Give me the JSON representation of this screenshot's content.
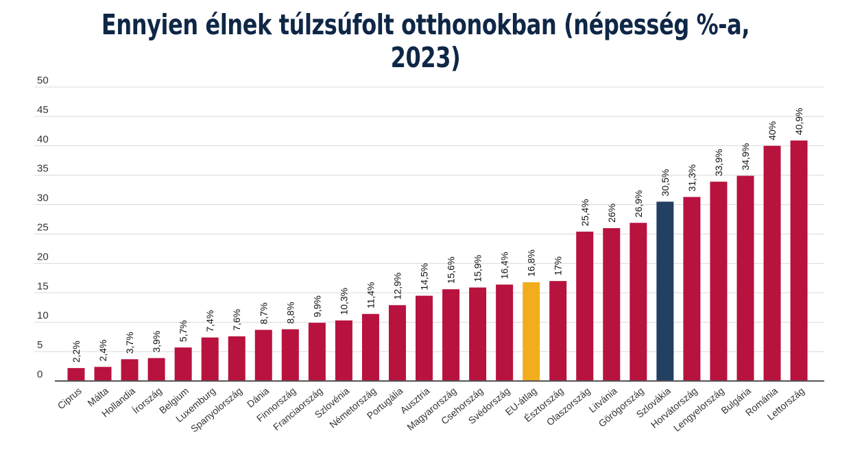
{
  "chart_data": {
    "type": "bar",
    "title": "Ennyien élnek túlzsúfolt otthonokban (népesség %-a, 2023)",
    "xlabel": "",
    "ylabel": "",
    "ylim": [
      0,
      50
    ],
    "yticks": [
      0,
      5,
      10,
      15,
      20,
      25,
      30,
      35,
      40,
      45,
      50
    ],
    "ytick_labels": [
      "0",
      "5",
      "10",
      "15",
      "20",
      "25",
      "30",
      "35",
      "40",
      "45",
      "50"
    ],
    "grid": true,
    "categories": [
      "Ciprus",
      "Málta",
      "Hollandia",
      "Írország",
      "Belgium",
      "Luxemburg",
      "Spanyolország",
      "Dánia",
      "Finnország",
      "Franciaország",
      "Szlovénia",
      "Németország",
      "Portugália",
      "Ausztria",
      "Magyarország",
      "Csehország",
      "Svédország",
      "EU-átlag",
      "Észtország",
      "Olaszország",
      "Litvánia",
      "Görögország",
      "Szlovákia",
      "Horvátország",
      "Lengyelország",
      "Bulgária",
      "Románia",
      "Lettország"
    ],
    "values": [
      2.2,
      2.4,
      3.7,
      3.9,
      5.7,
      7.4,
      7.6,
      8.7,
      8.8,
      9.9,
      10.3,
      11.4,
      12.9,
      14.5,
      15.6,
      15.9,
      16.4,
      16.8,
      17,
      25.4,
      26,
      26.9,
      30.5,
      31.3,
      33.9,
      34.9,
      40,
      40.9
    ],
    "data_labels": [
      "2,2%",
      "2,4%",
      "3,7%",
      "3,9%",
      "5,7%",
      "7,4%",
      "7,6%",
      "8,7%",
      "8,8%",
      "9,9%",
      "10,3%",
      "11,4%",
      "12,9%",
      "14,5%",
      "15,6%",
      "15,9%",
      "16,4%",
      "16,8%",
      "17%",
      "25,4%",
      "26%",
      "26,9%",
      "30,5%",
      "31,3%",
      "33,9%",
      "34,9%",
      "40%",
      "40,9%"
    ],
    "colors": {
      "default": "#b8123e",
      "highlight_eu": "#f2ad1e",
      "highlight_sk": "#233f62",
      "title": "#0f2747",
      "grid": "#d9d9d9",
      "axis": "#555555"
    },
    "highlights": {
      "EU-átlag": "highlight_eu",
      "Szlovákia": "highlight_sk"
    }
  }
}
